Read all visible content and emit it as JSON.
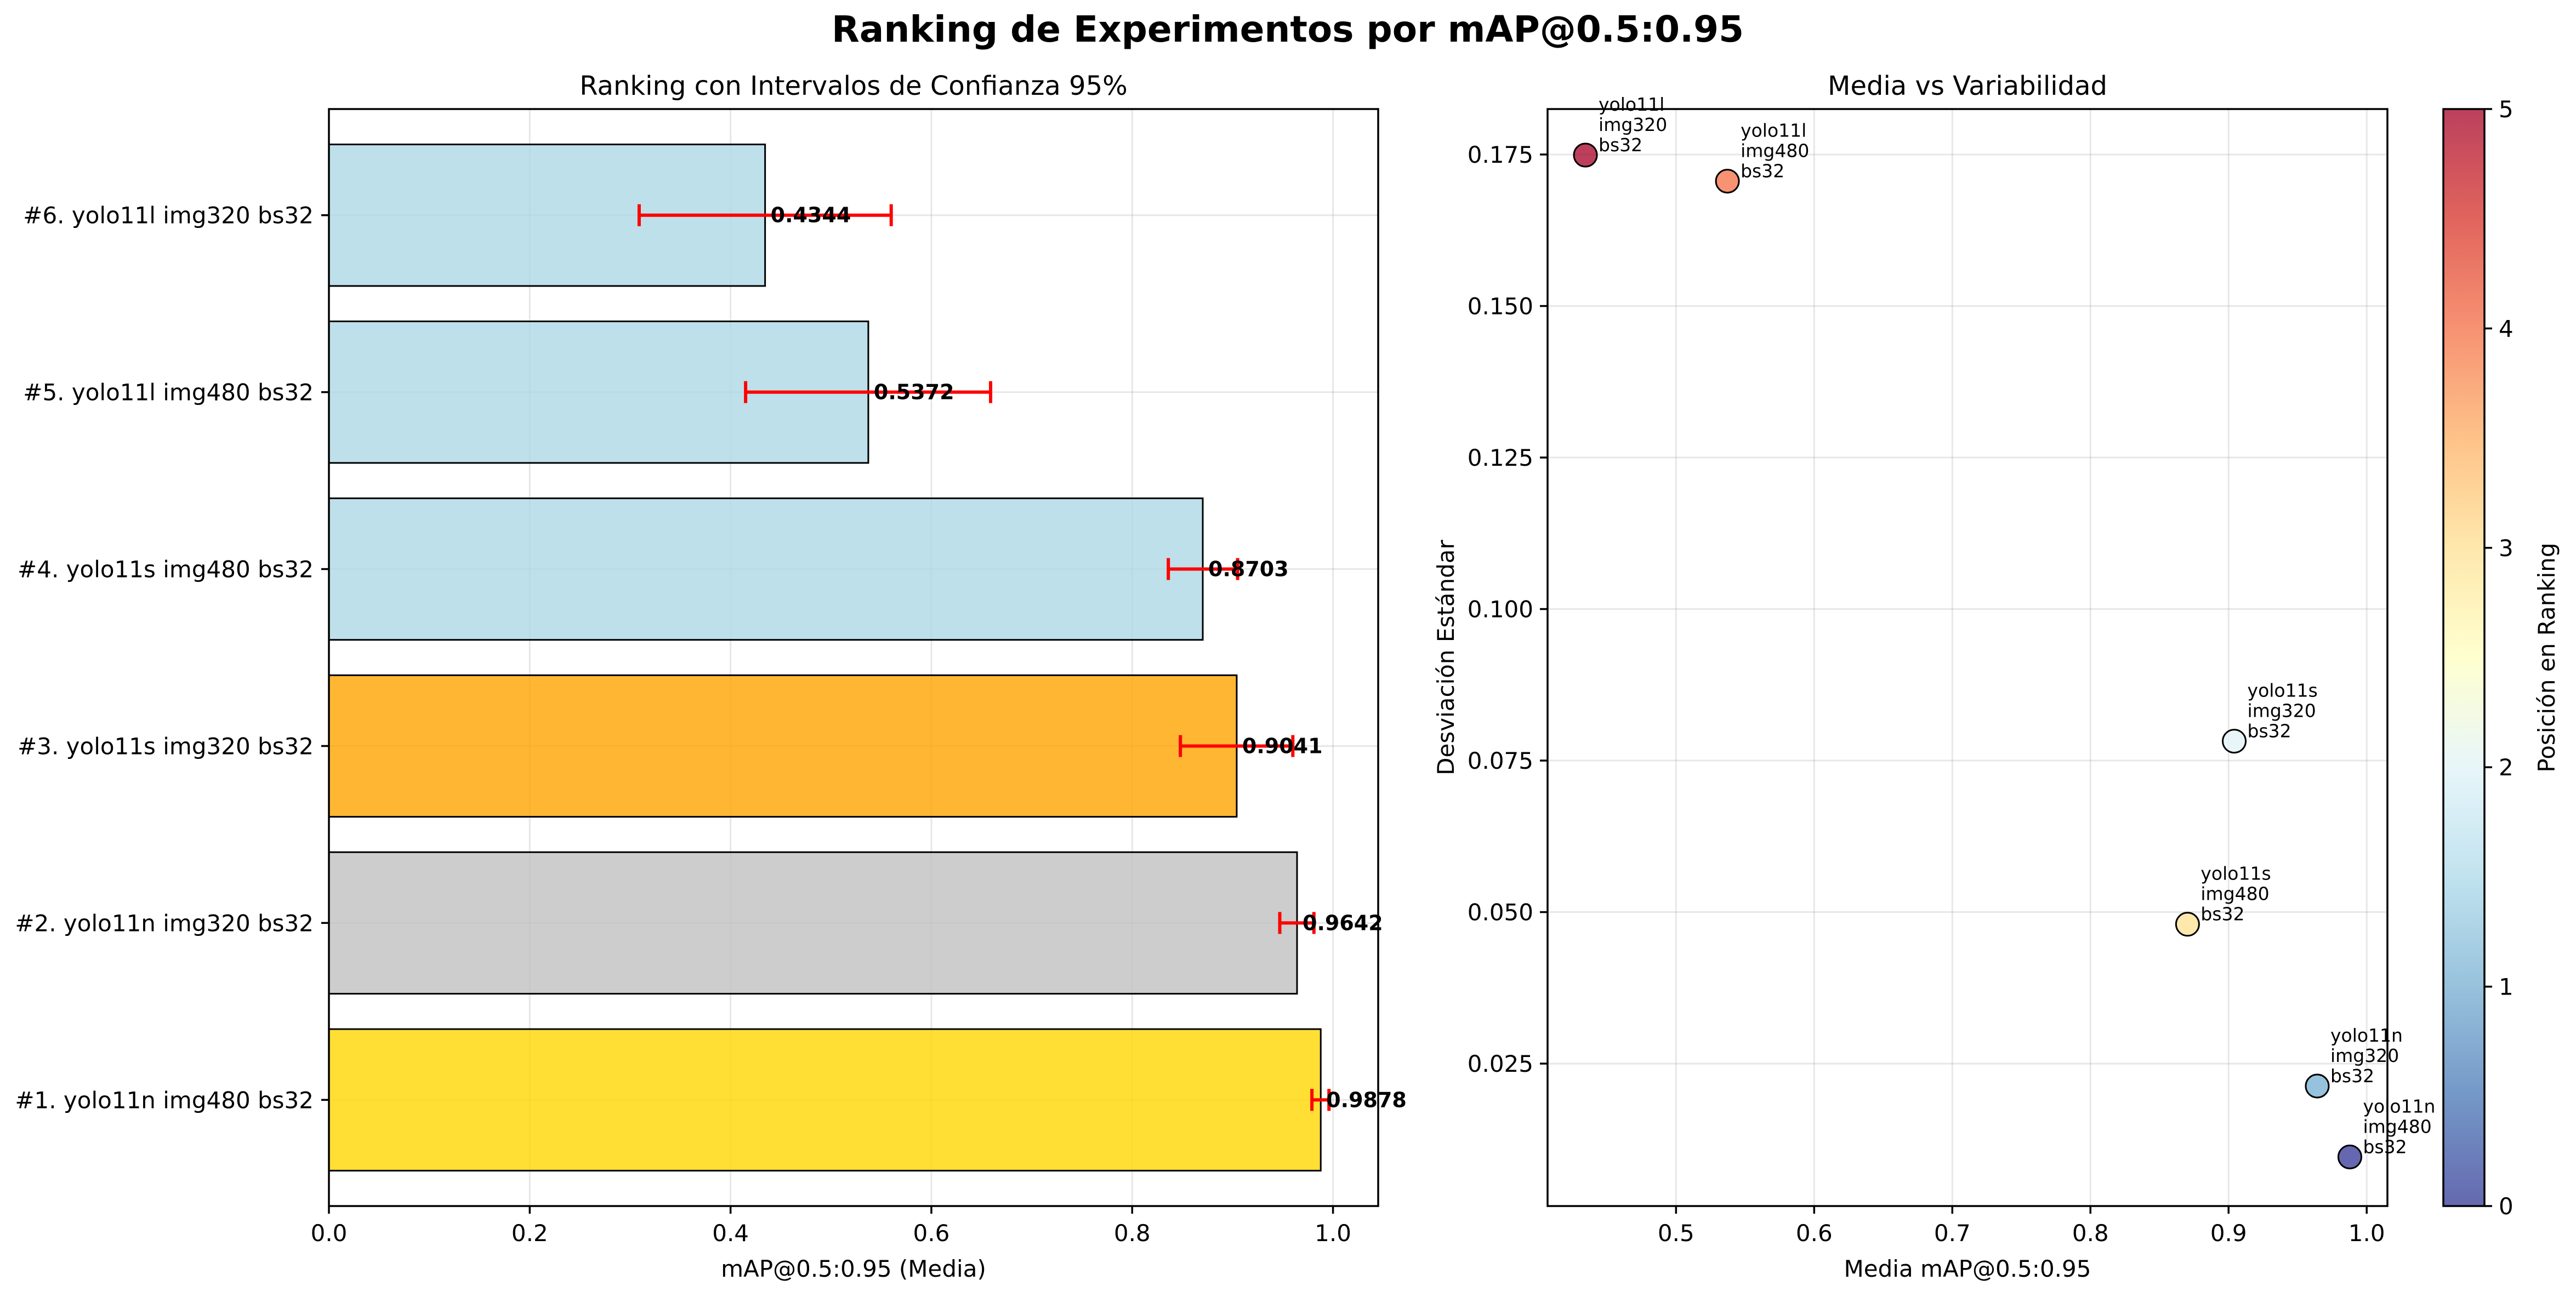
{
  "figure": {
    "title": "Ranking de Experimentos por mAP@0.5:0.95"
  },
  "chart_data": [
    {
      "type": "bar",
      "orientation": "horizontal",
      "title": "Ranking con Intervalos de Confianza 95%",
      "xlabel": "mAP@0.5:0.95 (Media)",
      "ylabel": "",
      "xlim": [
        0,
        1.045
      ],
      "x_ticks": [
        0.0,
        0.2,
        0.4,
        0.6,
        0.8,
        1.0
      ],
      "x_tick_labels": [
        "0.0",
        "0.2",
        "0.4",
        "0.6",
        "0.8",
        "1.0"
      ],
      "grid": true,
      "bars": [
        {
          "label": "#1. yolo11n img480 bs32",
          "value": 0.9878,
          "value_label": "0.9878",
          "ci": [
            0.979,
            0.996
          ],
          "color": "#FFD700"
        },
        {
          "label": "#2. yolo11n img320 bs32",
          "value": 0.9642,
          "value_label": "0.9642",
          "ci": [
            0.947,
            0.981
          ],
          "color": "#C0C0C0"
        },
        {
          "label": "#3. yolo11s img320 bs32",
          "value": 0.9041,
          "value_label": "0.9041",
          "ci": [
            0.848,
            0.96
          ],
          "color": "#FFA500"
        },
        {
          "label": "#4. yolo11s img480 bs32",
          "value": 0.8703,
          "value_label": "0.8703",
          "ci": [
            0.836,
            0.905
          ],
          "color": "#ADD8E6"
        },
        {
          "label": "#5. yolo11l img480 bs32",
          "value": 0.5372,
          "value_label": "0.5372",
          "ci": [
            0.415,
            0.659
          ],
          "color": "#ADD8E6"
        },
        {
          "label": "#6. yolo11l img320 bs32",
          "value": 0.4344,
          "value_label": "0.4344",
          "ci": [
            0.309,
            0.56
          ],
          "color": "#ADD8E6"
        }
      ],
      "error_bar_color": "#FF0000"
    },
    {
      "type": "scatter",
      "title": "Media vs Variabilidad",
      "xlabel": "Media mAP@0.5:0.95",
      "ylabel": "Desviación Estándar",
      "xlim": [
        0.407,
        1.015
      ],
      "ylim": [
        0.0015,
        0.1825
      ],
      "x_ticks": [
        0.5,
        0.6,
        0.7,
        0.8,
        0.9,
        1.0
      ],
      "x_tick_labels": [
        "0.5",
        "0.6",
        "0.7",
        "0.8",
        "0.9",
        "1.0"
      ],
      "y_ticks": [
        0.025,
        0.05,
        0.075,
        0.1,
        0.125,
        0.15,
        0.175
      ],
      "y_tick_labels": [
        "0.025",
        "0.050",
        "0.075",
        "0.100",
        "0.125",
        "0.150",
        "0.175"
      ],
      "grid": true,
      "colormap": "RdYlBu_r",
      "points": [
        {
          "x": 0.9878,
          "y": 0.0096,
          "rank_value": 0,
          "label": [
            "yolo11n",
            "img480",
            "bs32"
          ]
        },
        {
          "x": 0.9642,
          "y": 0.0213,
          "rank_value": 1,
          "label": [
            "yolo11n",
            "img320",
            "bs32"
          ]
        },
        {
          "x": 0.9041,
          "y": 0.0782,
          "rank_value": 2,
          "label": [
            "yolo11s",
            "img320",
            "bs32"
          ]
        },
        {
          "x": 0.8703,
          "y": 0.048,
          "rank_value": 3,
          "label": [
            "yolo11s",
            "img480",
            "bs32"
          ]
        },
        {
          "x": 0.5372,
          "y": 0.1706,
          "rank_value": 4,
          "label": [
            "yolo11l",
            "img480",
            "bs32"
          ]
        },
        {
          "x": 0.4344,
          "y": 0.1749,
          "rank_value": 5,
          "label": [
            "yolo11l",
            "img320",
            "bs32"
          ]
        }
      ],
      "colorbar": {
        "label": "Posición en Ranking",
        "range": [
          0,
          5
        ],
        "ticks": [
          0,
          1,
          2,
          3,
          4,
          5
        ],
        "tick_labels": [
          "0",
          "1",
          "2",
          "3",
          "4",
          "5"
        ]
      }
    }
  ]
}
